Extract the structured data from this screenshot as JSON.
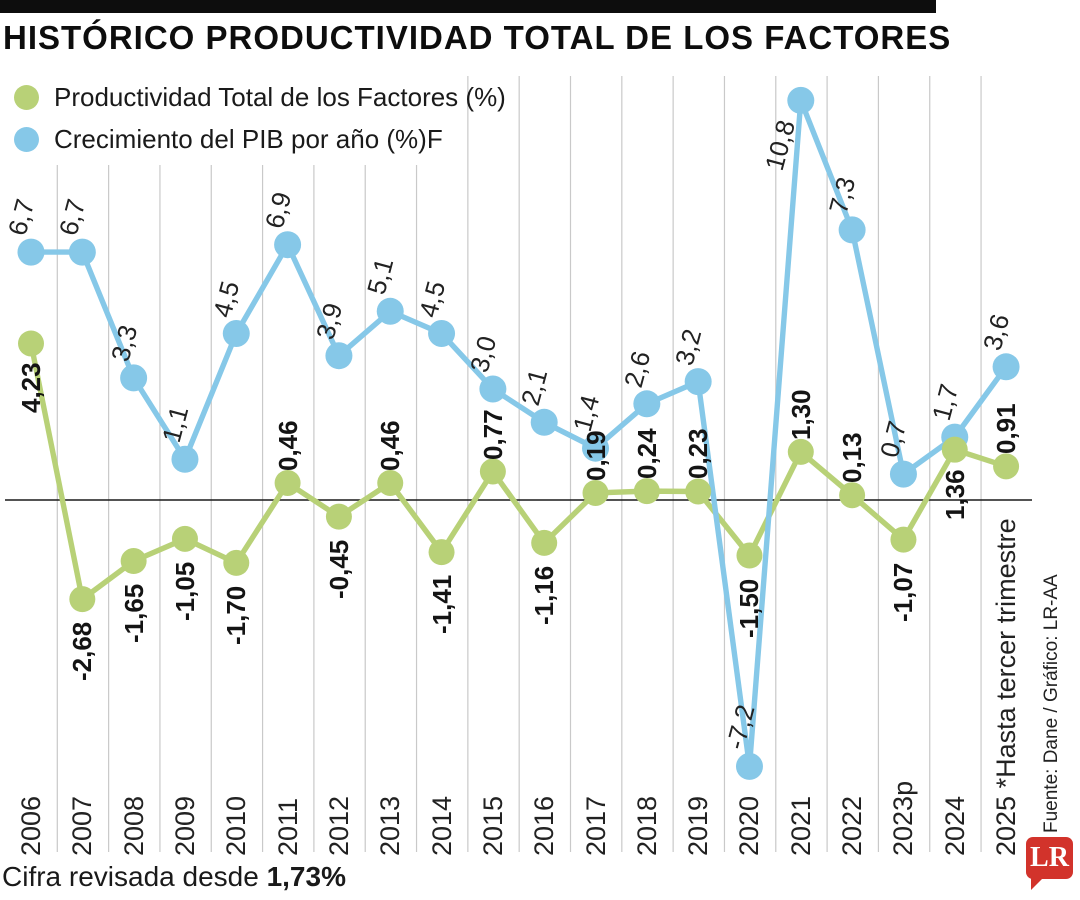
{
  "title": "HISTÓRICO PRODUCTIVIDAD TOTAL DE LOS FACTORES",
  "legend": [
    {
      "label": "Productividad Total de los Factores (%)",
      "color": "#b8d177"
    },
    {
      "label": "Crecimiento del PIB por año (%)F",
      "color": "#86c8e8"
    }
  ],
  "footnote": {
    "prefix": "Cifra revisada desde ",
    "value": "1,73%"
  },
  "source": "Fuente: Dane / Gráfico: LR-AA",
  "logo": "LR",
  "colors": {
    "productividad": "#b8d177",
    "pib": "#86c8e8",
    "gridline": "#c9c9c9",
    "zero_line": "#1a1a1a",
    "top_bar": "#0d0d0d",
    "logo_red": "#d2332b",
    "text": "#141414"
  },
  "chart_data": {
    "type": "line",
    "categories": [
      "2006",
      "2007",
      "2008",
      "2009",
      "2010",
      "2011",
      "2012",
      "2013",
      "2014",
      "2015",
      "2016",
      "2017",
      "2018",
      "2019",
      "2020",
      "2021",
      "2022",
      "2023p",
      "2024",
      "2025 *Hasta tercer trimestre"
    ],
    "series": [
      {
        "name": "Productividad Total de los Factores (%)",
        "color": "#b8d177",
        "values": [
          4.23,
          -2.68,
          -1.65,
          -1.05,
          -1.7,
          0.46,
          -0.45,
          0.46,
          -1.41,
          0.77,
          -1.16,
          0.19,
          0.24,
          0.23,
          -1.5,
          1.3,
          0.13,
          -1.07,
          1.36,
          0.91
        ],
        "labels": [
          "4,23",
          "-2,68",
          "-1,65",
          "-1,05",
          "-1,70",
          "0,46",
          "-0,45",
          "0,46",
          "-1,41",
          "0,77",
          "-1,16",
          "0,19",
          "0,24",
          "0,23",
          "-1,50",
          "1,30",
          "0,13",
          "-1,07",
          "1,36",
          "0,91"
        ]
      },
      {
        "name": "Crecimiento del PIB por año (%)F",
        "color": "#86c8e8",
        "values": [
          6.7,
          6.7,
          3.3,
          1.1,
          4.5,
          6.9,
          3.9,
          5.1,
          4.5,
          3.0,
          2.1,
          1.4,
          2.6,
          3.2,
          -7.2,
          10.8,
          7.3,
          0.7,
          1.7,
          3.6
        ],
        "labels": [
          "6,7",
          "6,7",
          "3,3",
          "1,1",
          "4,5",
          "6,9",
          "3,9",
          "5,1",
          "4,5",
          "3,0",
          "2,1",
          "1,4",
          "2,6",
          "3,2",
          "-7,2",
          "10,8",
          "7,3",
          "0,7",
          "1,7",
          "3,6"
        ]
      }
    ],
    "title": "HISTÓRICO PRODUCTIVIDAD TOTAL DE LOS FACTORES",
    "xlabel": "",
    "ylabel": "",
    "ylim": [
      -8.5,
      11.5
    ],
    "grid": "vertical-between-categories",
    "zero_line": true,
    "legend_position": "top-left",
    "data_label_style": "rotated"
  }
}
